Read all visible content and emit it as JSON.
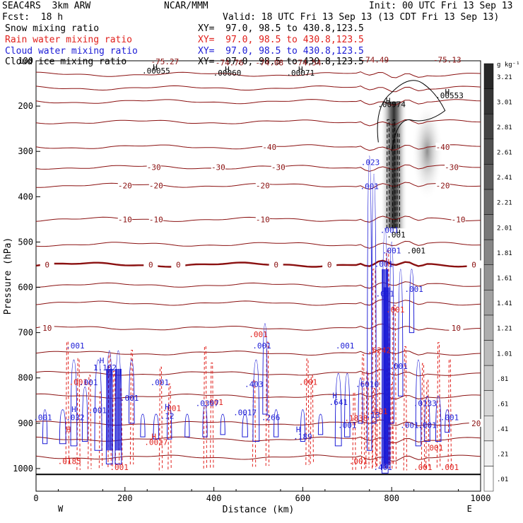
{
  "header": {
    "model": "SEAC4RS  3km ARW",
    "center": "NCAR/MMM",
    "init": "Init: 00 UTC Fri 13 Sep 13",
    "fcst": "Fcst:  18 h",
    "valid": "Valid: 18 UTC Fri 13 Sep 13 (13 CDT Fri 13 Sep 13)"
  },
  "legend": [
    {
      "name": "Snow mixing ratio",
      "xy": "XY=  97.0, 98.5 to 430.8,123.5",
      "color": "#000000"
    },
    {
      "name": "Rain water mixing ratio",
      "xy": "XY=  97.0, 98.5 to 430.8,123.5",
      "color": "#e0201c"
    },
    {
      "name": "Cloud water mixing ratio",
      "xy": "XY=  97.0, 98.5 to 430.8,123.5",
      "color": "#1c1cd6"
    },
    {
      "name": "Cloud ice mixing ratio",
      "xy": "XY=  97.0, 98.5 to 430.8,123.5",
      "color": "#000000"
    }
  ],
  "chart_data": {
    "type": "line",
    "xlabel": "Distance (km)",
    "ylabel": "Pressure (hPa)",
    "xlim": [
      0,
      1000
    ],
    "ylim": [
      1050,
      100
    ],
    "x_ticks": [
      0,
      200,
      400,
      600,
      800,
      1000
    ],
    "y_ticks": [
      200,
      300,
      400,
      500,
      600,
      700,
      800,
      900,
      1000
    ],
    "y_tick_labels_top": [
      "100"
    ],
    "x_end_labels": {
      "left": "W",
      "right": "E"
    },
    "colorbar": {
      "unit": "g kg⁻¹",
      "levels": [
        ".01",
        ".21",
        ".41",
        ".61",
        ".81",
        "1.01",
        "1.21",
        "1.41",
        "1.61",
        "1.81",
        "2.01",
        "2.21",
        "2.41",
        "2.61",
        "2.81",
        "3.01",
        "3.21"
      ]
    },
    "temperature_contours": [
      {
        "label": "-40",
        "p": 290,
        "labels_x": [
          525,
          915
        ]
      },
      {
        "label": "-30",
        "p": 335,
        "labels_x": [
          265,
          410,
          545,
          935
        ]
      },
      {
        "label": "-20",
        "p": 375,
        "labels_x": [
          200,
          270,
          510,
          915
        ]
      },
      {
        "label": "-10",
        "p": 450,
        "labels_x": [
          200,
          270,
          510,
          950
        ]
      },
      {
        "label": "0",
        "p": 550,
        "labels_x": [
          25,
          258,
          320,
          540,
          660,
          985
        ],
        "bold": true
      },
      {
        "label": "10",
        "p": 690,
        "labels_x": [
          25,
          945
        ]
      },
      {
        "label": "20",
        "p": 900,
        "labels_x": [
          990
        ]
      }
    ],
    "temperature_levels_unlabeled": [
      130,
      160,
      190,
      235,
      505,
      595,
      635,
      745,
      790,
      840,
      935,
      975
    ],
    "top_labels": [
      {
        "text": "-75.27",
        "x": 290,
        "p": 108
      },
      {
        "text": "-74.76",
        "x": 435,
        "p": 110
      },
      {
        "text": "-74.08",
        "x": 525,
        "p": 110
      },
      {
        "text": "-74.54",
        "x": 610,
        "p": 110
      },
      {
        "text": "-74.49",
        "x": 762,
        "p": 104
      },
      {
        "text": "-75.13",
        "x": 925,
        "p": 104
      }
    ],
    "snow_maxima": [
      {
        "text": "H",
        "x": 268,
        "p": 120
      },
      {
        "text": ".00055",
        "x": 270,
        "p": 128
      },
      {
        "text": "H",
        "x": 430,
        "p": 125
      },
      {
        "text": ".00060",
        "x": 430,
        "p": 133
      },
      {
        "text": "H",
        "x": 595,
        "p": 125
      },
      {
        "text": ".00071",
        "x": 595,
        "p": 133
      },
      {
        "text": "H",
        "x": 925,
        "p": 175
      },
      {
        "text": ".00553",
        "x": 930,
        "p": 183
      },
      {
        "text": "H",
        "x": 792,
        "p": 194
      },
      {
        "text": ".00974",
        "x": 800,
        "p": 202
      }
    ],
    "rain_labels": [
      {
        "text": ".001",
        "x": 500,
        "p": 710
      },
      {
        "text": ".001",
        "x": 95,
        "p": 815
      },
      {
        "text": "H",
        "x": 73,
        "p": 920
      },
      {
        "text": ".0185",
        "x": 75,
        "p": 990
      },
      {
        "text": "H",
        "x": 265,
        "p": 935
      },
      {
        "text": ".0017",
        "x": 270,
        "p": 948
      },
      {
        "text": ".001",
        "x": 187,
        "p": 1003
      },
      {
        "text": ".001",
        "x": 400,
        "p": 860
      },
      {
        "text": ".001",
        "x": 305,
        "p": 873
      },
      {
        "text": ".001",
        "x": 612,
        "p": 815
      },
      {
        "text": ".001",
        "x": 770,
        "p": 880
      },
      {
        "text": ".1838",
        "x": 720,
        "p": 895
      },
      {
        "text": ".001",
        "x": 870,
        "p": 1003
      },
      {
        "text": ".001",
        "x": 930,
        "p": 1003
      },
      {
        "text": ".001",
        "x": 725,
        "p": 990
      },
      {
        "text": ".001",
        "x": 895,
        "p": 960
      },
      {
        "text": ".001",
        "x": 808,
        "p": 655
      },
      {
        "text": ".6242",
        "x": 772,
        "p": 745
      }
    ],
    "cloud_water_labels": [
      {
        "text": ".001",
        "x": 88,
        "p": 735
      },
      {
        "text": "H",
        "x": 85,
        "p": 875
      },
      {
        "text": ".032",
        "x": 88,
        "p": 893
      },
      {
        "text": ".001",
        "x": 15,
        "p": 893
      },
      {
        "text": "H",
        "x": 148,
        "p": 768
      },
      {
        "text": "1.102",
        "x": 155,
        "p": 783
      },
      {
        "text": ".001",
        "x": 118,
        "p": 816
      },
      {
        "text": ".001",
        "x": 138,
        "p": 878
      },
      {
        "text": ".001",
        "x": 210,
        "p": 850
      },
      {
        "text": ".001",
        "x": 278,
        "p": 816
      },
      {
        "text": "H",
        "x": 295,
        "p": 870
      },
      {
        "text": ".12",
        "x": 295,
        "p": 890
      },
      {
        "text": ".0307",
        "x": 385,
        "p": 862
      },
      {
        "text": ".0017",
        "x": 470,
        "p": 882
      },
      {
        "text": ".001",
        "x": 508,
        "p": 735
      },
      {
        "text": ".403",
        "x": 490,
        "p": 820
      },
      {
        "text": ".266",
        "x": 528,
        "p": 893
      },
      {
        "text": "H",
        "x": 590,
        "p": 920
      },
      {
        "text": ".189",
        "x": 600,
        "p": 935
      },
      {
        "text": "H",
        "x": 672,
        "p": 845
      },
      {
        "text": ".641",
        "x": 680,
        "p": 860
      },
      {
        "text": ".001",
        "x": 695,
        "p": 735
      },
      {
        "text": ".001",
        "x": 700,
        "p": 910
      },
      {
        "text": ".023",
        "x": 752,
        "p": 330
      },
      {
        "text": ".001",
        "x": 750,
        "p": 383
      },
      {
        "text": ".001",
        "x": 795,
        "p": 480
      },
      {
        "text": ".001",
        "x": 800,
        "p": 525
      },
      {
        "text": ".001",
        "x": 782,
        "p": 555
      },
      {
        "text": ".001",
        "x": 785,
        "p": 620
      },
      {
        "text": ".001",
        "x": 850,
        "p": 610
      },
      {
        "text": ".001",
        "x": 815,
        "p": 780
      },
      {
        "text": ".001",
        "x": 840,
        "p": 910
      },
      {
        "text": ".0133",
        "x": 875,
        "p": 862
      },
      {
        "text": ".001",
        "x": 880,
        "p": 910
      },
      {
        "text": ".001",
        "x": 930,
        "p": 893
      },
      {
        "text": ".6010",
        "x": 745,
        "p": 820
      },
      {
        "text": ".13",
        "x": 758,
        "p": 888
      },
      {
        "text": ".401",
        "x": 780,
        "p": 1003
      }
    ],
    "cloud_ice_labels": [
      {
        "text": ".001",
        "x": 810,
        "p": 490
      },
      {
        "text": ".001",
        "x": 855,
        "p": 525
      }
    ]
  }
}
